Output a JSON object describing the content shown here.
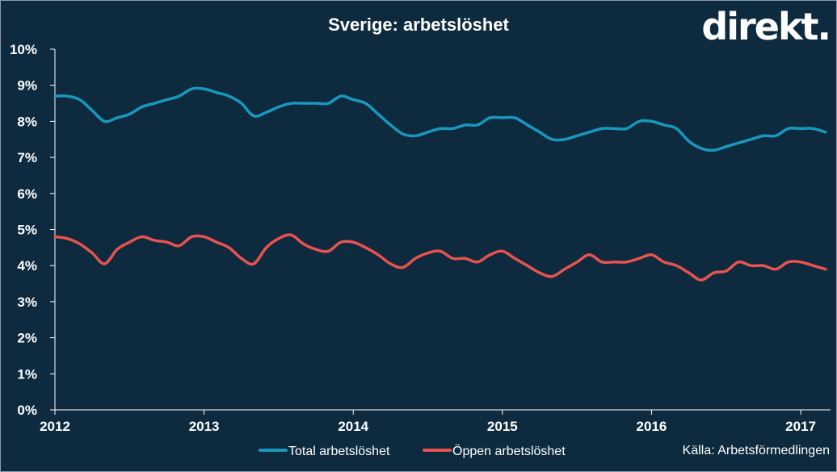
{
  "brand_logo": "direkt.",
  "source": "Källa:  Arbetsförmedlingen",
  "colors": {
    "background": "#0d2a3e",
    "total": "#1a97bd",
    "oppen": "#e8524f",
    "axis": "#ffffff"
  },
  "chart_data": {
    "type": "line",
    "title": "Sverige: arbetslöshet",
    "xlabel": "",
    "ylabel": "",
    "xlim": [
      2012,
      2017.2
    ],
    "ylim": [
      0,
      10
    ],
    "y_ticks": [
      0,
      1,
      2,
      3,
      4,
      5,
      6,
      7,
      8,
      9,
      10
    ],
    "y_tick_labels": [
      "0%",
      "1%",
      "2%",
      "3%",
      "4%",
      "5%",
      "6%",
      "7%",
      "8%",
      "9%",
      "10%"
    ],
    "x_ticks": [
      2012,
      2013,
      2014,
      2015,
      2016,
      2017
    ],
    "x_tick_labels": [
      "2012",
      "2013",
      "2014",
      "2015",
      "2016",
      "2017"
    ],
    "grid": false,
    "legend_position": "bottom",
    "series": [
      {
        "name": "Total arbetslöshet",
        "x": [
          2012.0,
          2012.083,
          2012.167,
          2012.25,
          2012.333,
          2012.417,
          2012.5,
          2012.583,
          2012.667,
          2012.75,
          2012.833,
          2012.917,
          2013.0,
          2013.083,
          2013.167,
          2013.25,
          2013.333,
          2013.417,
          2013.5,
          2013.583,
          2013.667,
          2013.75,
          2013.833,
          2013.917,
          2014.0,
          2014.083,
          2014.167,
          2014.25,
          2014.333,
          2014.417,
          2014.5,
          2014.583,
          2014.667,
          2014.75,
          2014.833,
          2014.917,
          2015.0,
          2015.083,
          2015.167,
          2015.25,
          2015.333,
          2015.417,
          2015.5,
          2015.583,
          2015.667,
          2015.75,
          2015.833,
          2015.917,
          2016.0,
          2016.083,
          2016.167,
          2016.25,
          2016.333,
          2016.417,
          2016.5,
          2016.583,
          2016.667,
          2016.75,
          2016.833,
          2016.917,
          2017.0,
          2017.083,
          2017.167
        ],
        "values": [
          8.7,
          8.7,
          8.6,
          8.3,
          8.0,
          8.1,
          8.2,
          8.4,
          8.5,
          8.6,
          8.7,
          8.9,
          8.9,
          8.8,
          8.7,
          8.5,
          8.15,
          8.25,
          8.4,
          8.5,
          8.5,
          8.5,
          8.5,
          8.7,
          8.6,
          8.5,
          8.2,
          7.9,
          7.65,
          7.6,
          7.7,
          7.8,
          7.8,
          7.9,
          7.9,
          8.1,
          8.1,
          8.1,
          7.9,
          7.7,
          7.5,
          7.5,
          7.6,
          7.7,
          7.8,
          7.8,
          7.8,
          8.0,
          8.0,
          7.9,
          7.8,
          7.45,
          7.25,
          7.2,
          7.3,
          7.4,
          7.5,
          7.6,
          7.6,
          7.8,
          7.8,
          7.8,
          7.7
        ]
      },
      {
        "name": "Öppen arbetslöshet",
        "x": [
          2012.0,
          2012.083,
          2012.167,
          2012.25,
          2012.333,
          2012.417,
          2012.5,
          2012.583,
          2012.667,
          2012.75,
          2012.833,
          2012.917,
          2013.0,
          2013.083,
          2013.167,
          2013.25,
          2013.333,
          2013.417,
          2013.5,
          2013.583,
          2013.667,
          2013.75,
          2013.833,
          2013.917,
          2014.0,
          2014.083,
          2014.167,
          2014.25,
          2014.333,
          2014.417,
          2014.5,
          2014.583,
          2014.667,
          2014.75,
          2014.833,
          2014.917,
          2015.0,
          2015.083,
          2015.167,
          2015.25,
          2015.333,
          2015.417,
          2015.5,
          2015.583,
          2015.667,
          2015.75,
          2015.833,
          2015.917,
          2016.0,
          2016.083,
          2016.167,
          2016.25,
          2016.333,
          2016.417,
          2016.5,
          2016.583,
          2016.667,
          2016.75,
          2016.833,
          2016.917,
          2017.0,
          2017.083,
          2017.167
        ],
        "values": [
          4.8,
          4.75,
          4.6,
          4.35,
          4.05,
          4.45,
          4.65,
          4.8,
          4.7,
          4.65,
          4.55,
          4.8,
          4.8,
          4.65,
          4.5,
          4.2,
          4.05,
          4.5,
          4.75,
          4.85,
          4.6,
          4.45,
          4.4,
          4.65,
          4.65,
          4.5,
          4.3,
          4.05,
          3.95,
          4.2,
          4.35,
          4.4,
          4.2,
          4.2,
          4.1,
          4.3,
          4.4,
          4.2,
          4.0,
          3.8,
          3.7,
          3.9,
          4.1,
          4.3,
          4.1,
          4.1,
          4.1,
          4.2,
          4.3,
          4.1,
          4.0,
          3.8,
          3.6,
          3.8,
          3.85,
          4.1,
          4.0,
          4.0,
          3.9,
          4.1,
          4.1,
          4.0,
          3.9
        ]
      }
    ]
  }
}
